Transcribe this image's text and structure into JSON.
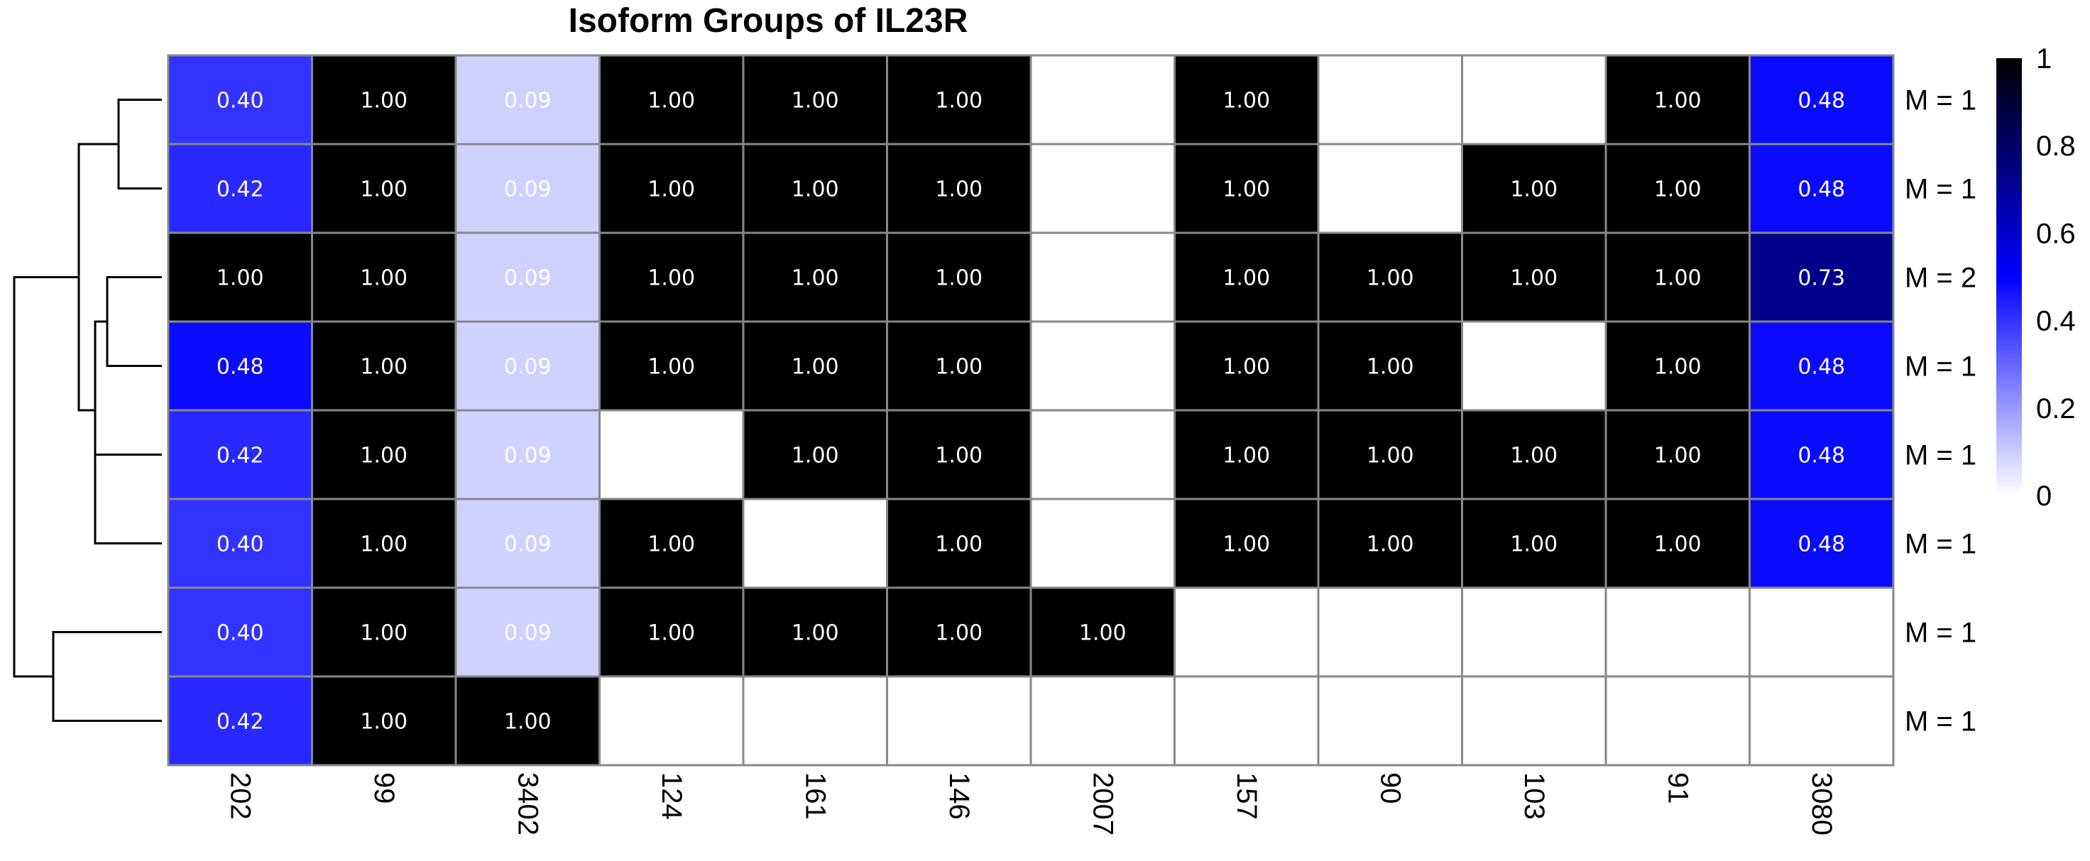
{
  "chart_data": {
    "type": "heatmap",
    "title": "Isoform Groups of IL23R",
    "columns": [
      "202",
      "99",
      "3402",
      "124",
      "161",
      "146",
      "2007",
      "157",
      "90",
      "103",
      "91",
      "3080"
    ],
    "rows": [
      "M = 1",
      "M = 1",
      "M = 2",
      "M = 1",
      "M = 1",
      "M = 1",
      "M = 1",
      "M = 1"
    ],
    "values": [
      [
        0.4,
        1.0,
        0.09,
        1.0,
        1.0,
        1.0,
        null,
        1.0,
        null,
        null,
        1.0,
        0.48
      ],
      [
        0.42,
        1.0,
        0.09,
        1.0,
        1.0,
        1.0,
        null,
        1.0,
        null,
        1.0,
        1.0,
        0.48
      ],
      [
        1.0,
        1.0,
        0.09,
        1.0,
        1.0,
        1.0,
        null,
        1.0,
        1.0,
        1.0,
        1.0,
        0.73
      ],
      [
        0.48,
        1.0,
        0.09,
        1.0,
        1.0,
        1.0,
        null,
        1.0,
        1.0,
        null,
        1.0,
        0.48
      ],
      [
        0.42,
        1.0,
        0.09,
        null,
        1.0,
        1.0,
        null,
        1.0,
        1.0,
        1.0,
        1.0,
        0.48
      ],
      [
        0.4,
        1.0,
        0.09,
        1.0,
        null,
        1.0,
        null,
        1.0,
        1.0,
        1.0,
        1.0,
        0.48
      ],
      [
        0.4,
        1.0,
        0.09,
        1.0,
        1.0,
        1.0,
        1.0,
        null,
        null,
        null,
        null,
        null
      ],
      [
        0.42,
        1.0,
        1.0,
        null,
        null,
        null,
        null,
        null,
        null,
        null,
        null,
        null
      ]
    ],
    "color_scale": {
      "min": 0,
      "max": 1,
      "stops": [
        {
          "value": 0,
          "color": "#ffffff"
        },
        {
          "value": 0.5,
          "color": "#0000ff"
        },
        {
          "value": 1,
          "color": "#000000"
        }
      ]
    },
    "legend_ticks": [
      "0",
      "0.2",
      "0.4",
      "0.6",
      "0.8",
      "1"
    ],
    "legend_placement": "right",
    "dendrogram": "rows-left",
    "cell_border_color": "#888888"
  }
}
